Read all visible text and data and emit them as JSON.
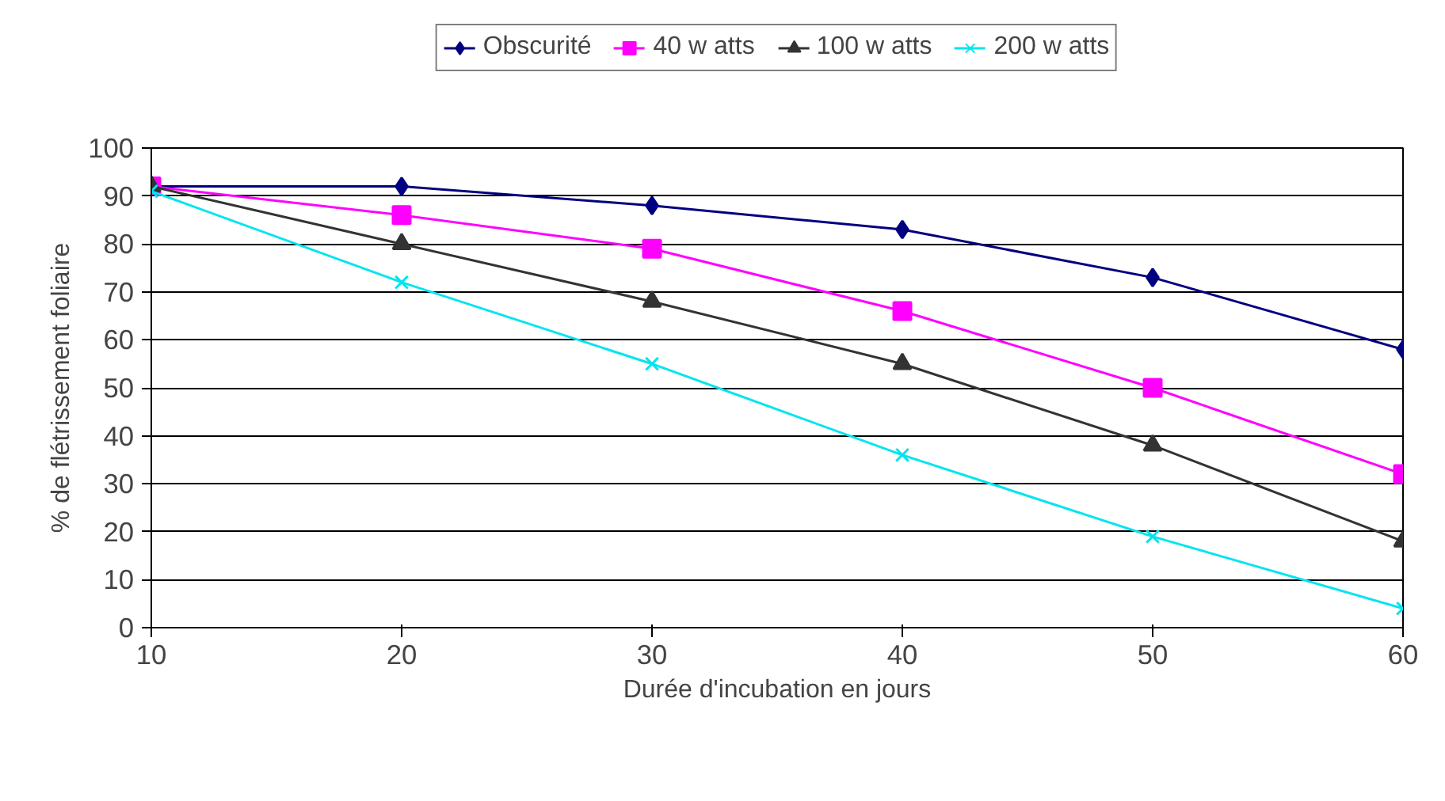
{
  "chart_data": {
    "type": "line",
    "xlabel": "Durée d'incubation en jours",
    "ylabel": "% de flétrissement foliaire",
    "x": [
      10,
      20,
      30,
      40,
      50,
      60
    ],
    "series": [
      {
        "name": "Obscurité",
        "color": "#000080",
        "marker": "diamond",
        "values": [
          92,
          92,
          88,
          83,
          73,
          58
        ]
      },
      {
        "name": "40 w atts",
        "color": "#ff00ff",
        "marker": "square",
        "values": [
          92,
          86,
          79,
          66,
          50,
          32
        ]
      },
      {
        "name": "100 w atts",
        "color": "#333333",
        "marker": "triangle",
        "values": [
          92,
          80,
          68,
          55,
          38,
          18
        ]
      },
      {
        "name": "200 w atts",
        "color": "#00e5ee",
        "marker": "cross",
        "values": [
          91,
          72,
          55,
          36,
          19,
          4
        ]
      }
    ],
    "xlim": [
      10,
      60
    ],
    "xticks": [
      10,
      20,
      30,
      40,
      50,
      60
    ],
    "ylim": [
      0,
      100
    ],
    "yticks": [
      0,
      10,
      20,
      30,
      40,
      50,
      60,
      70,
      80,
      90,
      100
    ],
    "grid": "y",
    "legend": "top",
    "line_style": "solid"
  }
}
